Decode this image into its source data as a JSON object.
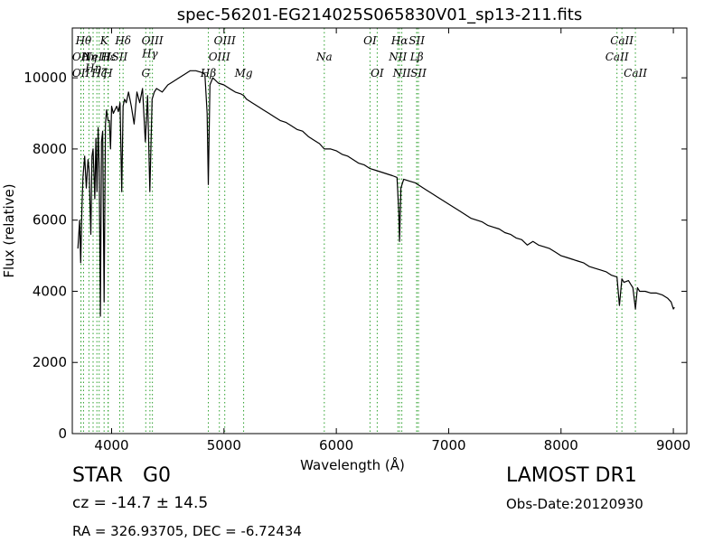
{
  "chart_data": {
    "type": "line",
    "title": "spec-56201-EG214025S065830V01_sp13-211.fits",
    "xlabel": "Wavelength (Å)",
    "ylabel": "Flux (relative)",
    "xlim": [
      3650,
      9120
    ],
    "ylim": [
      0,
      11400
    ],
    "x_ticks": [
      4000,
      5000,
      6000,
      7000,
      8000,
      9000
    ],
    "y_ticks": [
      0,
      2000,
      4000,
      6000,
      8000,
      10000
    ],
    "grid": false,
    "line_color": "#000000",
    "marker_color": "#2ca02c",
    "series": [
      {
        "x": [
          3700,
          3715,
          3725,
          3735,
          3745,
          3760,
          3775,
          3790,
          3800,
          3815,
          3825,
          3835,
          3850,
          3860,
          3870,
          3880,
          3890,
          3900,
          3910,
          3920,
          3933,
          3945,
          3955,
          3968,
          3980,
          3990,
          4000,
          4015,
          4030,
          4045,
          4060,
          4075,
          4090,
          4102,
          4115,
          4130,
          4150,
          4175,
          4200,
          4225,
          4250,
          4275,
          4300,
          4320,
          4340,
          4360,
          4380,
          4400,
          4450,
          4500,
          4550,
          4600,
          4650,
          4700,
          4750,
          4800,
          4830,
          4850,
          4861,
          4875,
          4900,
          4950,
          5000,
          5050,
          5100,
          5150,
          5175,
          5200,
          5250,
          5300,
          5350,
          5400,
          5450,
          5500,
          5550,
          5600,
          5650,
          5700,
          5750,
          5800,
          5850,
          5893,
          5950,
          6000,
          6050,
          6100,
          6150,
          6200,
          6250,
          6300,
          6350,
          6400,
          6450,
          6500,
          6540,
          6556,
          6563,
          6575,
          6600,
          6650,
          6700,
          6750,
          6800,
          6850,
          6900,
          6950,
          7000,
          7050,
          7100,
          7150,
          7200,
          7250,
          7300,
          7350,
          7400,
          7450,
          7500,
          7550,
          7600,
          7650,
          7700,
          7750,
          7800,
          7850,
          7900,
          7950,
          8000,
          8050,
          8100,
          8150,
          8200,
          8250,
          8300,
          8350,
          8400,
          8450,
          8498,
          8520,
          8542,
          8560,
          8600,
          8620,
          8640,
          8662,
          8680,
          8700,
          8750,
          8800,
          8850,
          8900,
          8950,
          8980,
          9000,
          9010
        ],
        "y": [
          5200,
          6000,
          4800,
          6300,
          7200,
          7800,
          6900,
          7700,
          7400,
          5600,
          7800,
          8000,
          6600,
          8300,
          6800,
          8600,
          7400,
          3300,
          8200,
          8500,
          3700,
          8700,
          9100,
          8800,
          8800,
          8000,
          9200,
          9000,
          9100,
          9200,
          9050,
          9300,
          6800,
          9200,
          9400,
          9300,
          9600,
          9200,
          8700,
          9600,
          9300,
          9700,
          8200,
          9500,
          6800,
          9400,
          9600,
          9700,
          9600,
          9800,
          9900,
          10000,
          10100,
          10200,
          10200,
          10150,
          10100,
          9000,
          7000,
          9800,
          10000,
          9850,
          9800,
          9700,
          9600,
          9550,
          9500,
          9400,
          9300,
          9200,
          9100,
          9000,
          8900,
          8800,
          8750,
          8650,
          8550,
          8500,
          8350,
          8250,
          8150,
          8000,
          8000,
          7950,
          7850,
          7800,
          7700,
          7600,
          7550,
          7450,
          7400,
          7350,
          7300,
          7250,
          7200,
          6200,
          5400,
          6900,
          7150,
          7100,
          7050,
          6950,
          6850,
          6750,
          6650,
          6550,
          6450,
          6350,
          6250,
          6150,
          6050,
          6000,
          5950,
          5850,
          5800,
          5750,
          5650,
          5600,
          5500,
          5450,
          5300,
          5400,
          5300,
          5250,
          5200,
          5100,
          5000,
          4950,
          4900,
          4850,
          4800,
          4700,
          4650,
          4600,
          4550,
          4450,
          4400,
          3600,
          4350,
          4250,
          4300,
          4200,
          4100,
          3500,
          4100,
          4000,
          4000,
          3950,
          3950,
          3900,
          3800,
          3700,
          3500,
          3550
        ]
      }
    ],
    "line_markers": [
      {
        "x": 3727,
        "label": "OII",
        "row": 2
      },
      {
        "x": 3727,
        "label": "OII",
        "row": 3
      },
      {
        "x": 3750,
        "label": "Hθ",
        "row": 1
      },
      {
        "x": 3798,
        "label": "Hη",
        "row": 2
      },
      {
        "x": 3835,
        "label": "Hη",
        "row": 2.7
      },
      {
        "x": 3869,
        "label": "NeIII",
        "row": 2
      },
      {
        "x": 3889,
        "label": "Hζ",
        "row": 3
      },
      {
        "x": 3933,
        "label": "K",
        "row": 1
      },
      {
        "x": 3968,
        "label": "H",
        "row": 3
      },
      {
        "x": 3970,
        "label": "Hε",
        "row": 2
      },
      {
        "x": 4072,
        "label": "SII",
        "row": 2
      },
      {
        "x": 4102,
        "label": "Hδ",
        "row": 1
      },
      {
        "x": 4304,
        "label": "G",
        "row": 3
      },
      {
        "x": 4341,
        "label": "Hγ",
        "row": 1.8
      },
      {
        "x": 4363,
        "label": "OIII",
        "row": 1
      },
      {
        "x": 4861,
        "label": "Hβ",
        "row": 3
      },
      {
        "x": 4959,
        "label": "OIII",
        "row": 2
      },
      {
        "x": 5007,
        "label": "OIII",
        "row": 1
      },
      {
        "x": 5175,
        "label": "Mg",
        "row": 3
      },
      {
        "x": 5893,
        "label": "Na",
        "row": 2
      },
      {
        "x": 6300,
        "label": "OI",
        "row": 1
      },
      {
        "x": 6364,
        "label": "OI",
        "row": 3
      },
      {
        "x": 6548,
        "label": "NII",
        "row": 2
      },
      {
        "x": 6563,
        "label": "Hα",
        "row": 1
      },
      {
        "x": 6583,
        "label": "NII",
        "row": 3
      },
      {
        "x": 6716,
        "label": "SII",
        "row": 1
      },
      {
        "x": 6716,
        "label": "Lβ",
        "row": 2
      },
      {
        "x": 6731,
        "label": "SII",
        "row": 3
      },
      {
        "x": 8498,
        "label": "CaII",
        "row": 2
      },
      {
        "x": 8542,
        "label": "CaII",
        "row": 1
      },
      {
        "x": 8662,
        "label": "CaII",
        "row": 3
      }
    ]
  },
  "info": {
    "class_label": "STAR",
    "subclass_label": "G0",
    "cz_text": "cz = -14.7  ± 14.5",
    "coords_text": "RA = 326.93705, DEC = -6.72434",
    "survey_label": "LAMOST DR1",
    "obs_date_text": "Obs-Date:20120930"
  }
}
